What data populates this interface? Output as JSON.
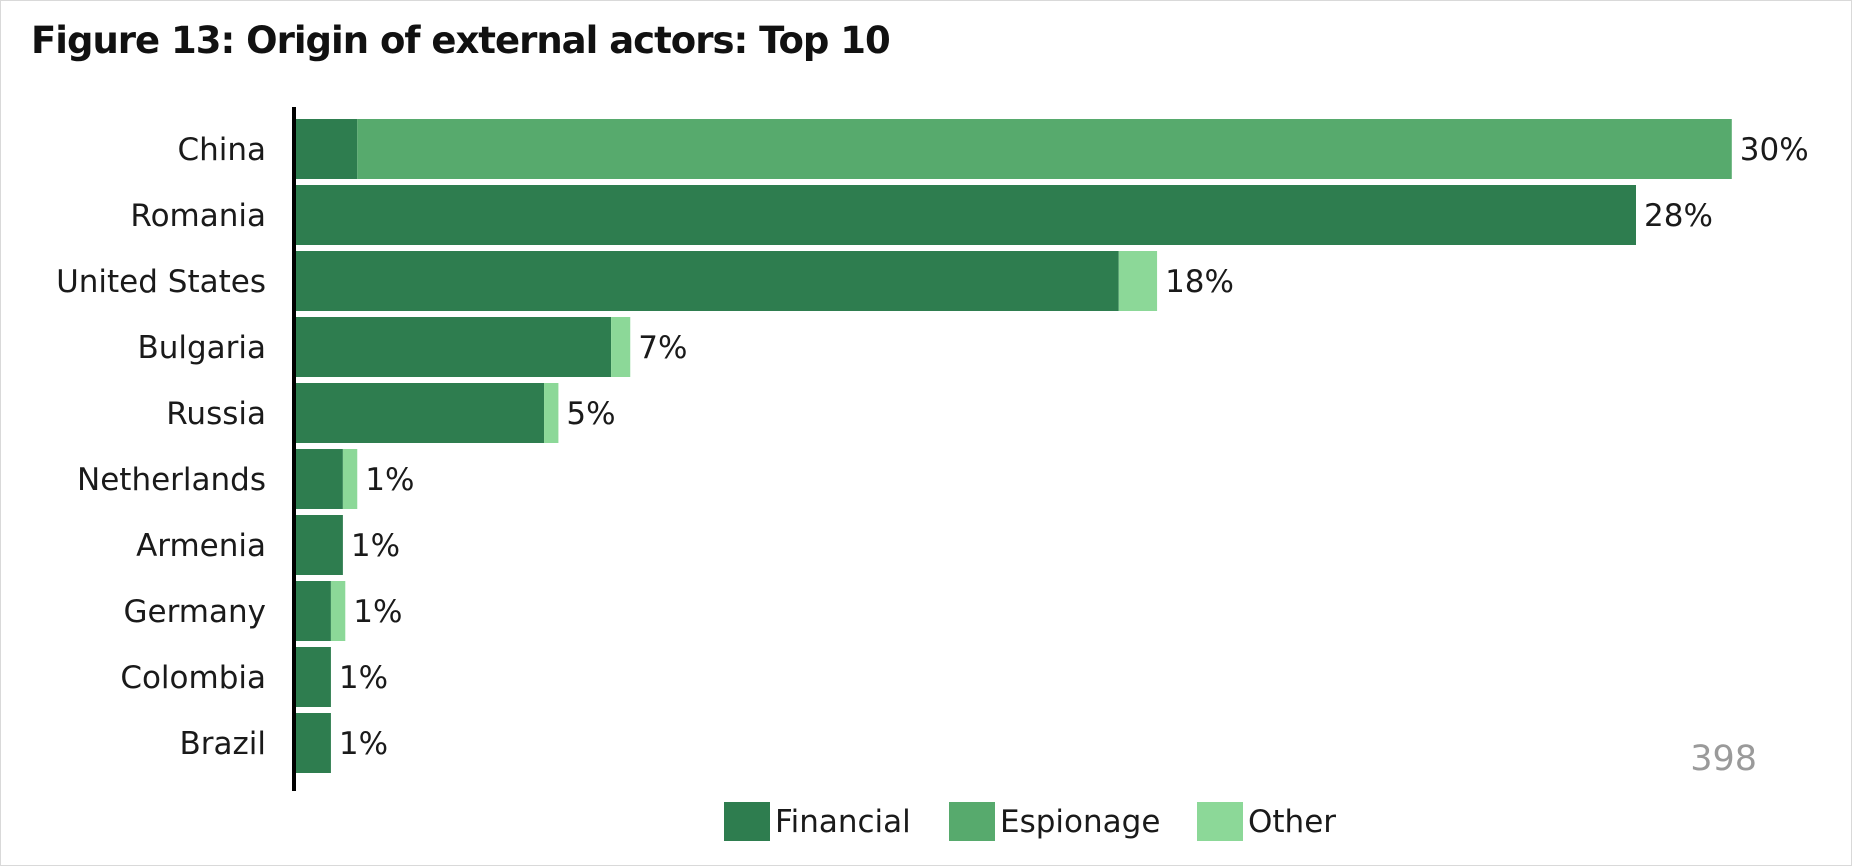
{
  "chart_data": {
    "type": "bar",
    "orientation": "horizontal",
    "stacked": true,
    "title": "Figure 13: Origin of external actors: Top 10",
    "categories": [
      "China",
      "Romania",
      "United States",
      "Bulgaria",
      "Russia",
      "Netherlands",
      "Armenia",
      "Germany",
      "Colombia",
      "Brazil"
    ],
    "series": [
      {
        "name": "Financial",
        "color": "#2e7d4f",
        "values": [
          1.3,
          28.0,
          17.2,
          6.6,
          5.2,
          1.0,
          1.0,
          0.75,
          0.75,
          0.75
        ]
      },
      {
        "name": "Espionage",
        "color": "#57aa6d",
        "values": [
          28.7,
          0,
          0,
          0,
          0,
          0,
          0,
          0,
          0,
          0
        ]
      },
      {
        "name": "Other",
        "color": "#8cd898",
        "values": [
          0,
          0,
          0.8,
          0.4,
          0.3,
          0.3,
          0,
          0.3,
          0,
          0
        ]
      }
    ],
    "totals_labels": [
      "30%",
      "28%",
      "18%",
      "7%",
      "5%",
      "1%",
      "1%",
      "1%",
      "1%",
      "1%"
    ],
    "count_label": "398",
    "xlim": [
      0,
      31
    ],
    "grid": false,
    "legend_position": "bottom"
  }
}
